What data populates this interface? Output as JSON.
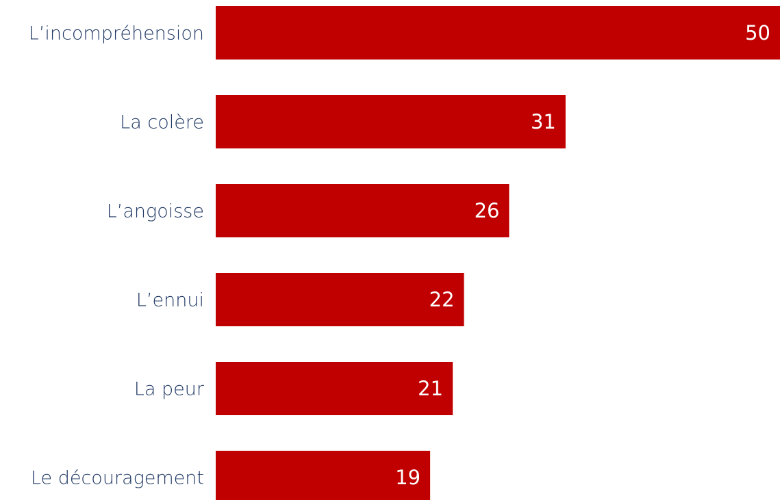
{
  "chart_data": {
    "type": "bar",
    "orientation": "horizontal",
    "categories": [
      "L’incompréhension",
      "La colère",
      "L’angoisse",
      "L’ennui",
      "La peur",
      "Le découragement"
    ],
    "values": [
      50,
      31,
      26,
      22,
      21,
      19
    ],
    "color": "#c00000"
  }
}
